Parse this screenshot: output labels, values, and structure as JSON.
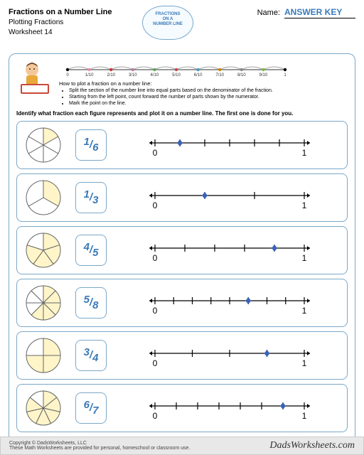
{
  "header": {
    "title": "Fractions on a Number Line",
    "subtitle": "Plotting Fractions",
    "worksheet": "Worksheet 14",
    "name_label": "Name:",
    "answer_key": "ANSWER KEY",
    "badge_line1": "FRACTIONS",
    "badge_line2": "ON A",
    "badge_line3": "NUMBER LINE"
  },
  "intro": {
    "howto_title": "How to plot a fraction on a number line:",
    "step1": "Split the section of the number line into equal parts based on the denominator of the fraction.",
    "step2": "Starting from the left point, count forward the number of parts shown by the numerator.",
    "step3": "Mark the point on the line.",
    "ruler_labels": [
      "0",
      "1/10",
      "2/10",
      "3/10",
      "4/10",
      "5/10",
      "6/10",
      "7/10",
      "8/10",
      "9/10",
      "1"
    ],
    "ruler_colors": [
      "#000",
      "#e8a",
      "#c33",
      "#b7a",
      "#5a5",
      "#c44",
      "#49c",
      "#c80",
      "#888",
      "#7b4",
      "#000"
    ]
  },
  "instruction": "Identify what fraction each figure represents and plot it on a number line. The first one is done for you.",
  "problems": [
    {
      "num": 1,
      "den": 6,
      "shaded": 1
    },
    {
      "num": 1,
      "den": 3,
      "shaded": 1
    },
    {
      "num": 4,
      "den": 5,
      "shaded": 4
    },
    {
      "num": 5,
      "den": 8,
      "shaded": 5
    },
    {
      "num": 3,
      "den": 4,
      "shaded": 3
    },
    {
      "num": 6,
      "den": 7,
      "shaded": 6
    }
  ],
  "colors": {
    "border": "#7aa8c8",
    "accent": "#3a7ab8",
    "shaded": "#fff5c8",
    "marker": "#3a62b8",
    "pie_stroke": "#666"
  },
  "footer": {
    "copyright": "Copyright © DadsWorksheets, LLC",
    "note": "These Math Worksheets are provided for personal, homeschool or classroom use.",
    "logo": "DadsWorksheets.com"
  }
}
